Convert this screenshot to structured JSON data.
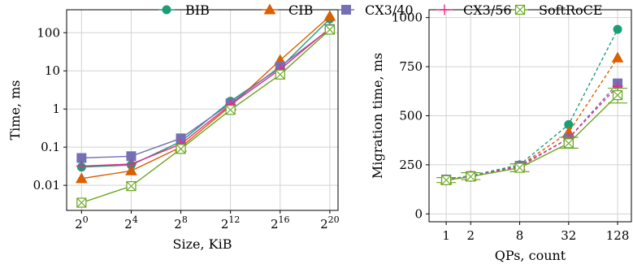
{
  "legend": [
    {
      "name": "BIB",
      "color": "#1b9e77",
      "marker": "circle"
    },
    {
      "name": "CIB",
      "color": "#d95f02",
      "marker": "triangle"
    },
    {
      "name": "CX3/40",
      "color": "#7570b3",
      "marker": "square"
    },
    {
      "name": "CX3/56",
      "color": "#e7298a",
      "marker": "plus"
    },
    {
      "name": "SoftRoCE",
      "color": "#66a61e",
      "marker": "square-x"
    }
  ],
  "chart_data": [
    {
      "type": "line",
      "xlabel": "Size, KiB",
      "ylabel": "Time, ms",
      "yscale": "log",
      "xscale": "log2",
      "x": [
        1,
        16,
        256,
        4096,
        65536,
        1048576
      ],
      "x_tick_labels": [
        {
          "base": "2",
          "exp": "0"
        },
        {
          "base": "2",
          "exp": "4"
        },
        {
          "base": "2",
          "exp": "8"
        },
        {
          "base": "2",
          "exp": "12"
        },
        {
          "base": "2",
          "exp": "16"
        },
        {
          "base": "2",
          "exp": "20"
        }
      ],
      "y_ticks": [
        0.01,
        0.1,
        1,
        10,
        100
      ],
      "y_tick_labels": [
        "0.01",
        "0.1",
        "1",
        "10",
        "100"
      ],
      "grid": true,
      "series": [
        {
          "name": "BIB",
          "values": [
            0.03,
            0.034,
            0.14,
            1.6,
            12,
            230
          ]
        },
        {
          "name": "CIB",
          "values": [
            0.015,
            0.024,
            0.1,
            1.2,
            19,
            270
          ]
        },
        {
          "name": "CX3/40",
          "values": [
            0.052,
            0.058,
            0.17,
            1.4,
            13,
            125
          ]
        },
        {
          "name": "CX3/56",
          "values": [
            0.032,
            0.036,
            0.12,
            1.3,
            11,
            130
          ]
        },
        {
          "name": "SoftRoCE",
          "values": [
            0.0035,
            0.0095,
            0.09,
            0.95,
            8,
            120
          ]
        }
      ]
    },
    {
      "type": "line",
      "xlabel": "QPs, count",
      "ylabel": "Migration time, ms",
      "xscale": "log2",
      "x": [
        1,
        2,
        8,
        32,
        128
      ],
      "x_tick_labels": [
        "1",
        "2",
        "8",
        "32",
        "128"
      ],
      "y_ticks": [
        0,
        250,
        500,
        750,
        1000
      ],
      "y_tick_labels": [
        "0",
        "250",
        "500",
        "750",
        "1000"
      ],
      "ylim": [
        -40,
        1040
      ],
      "grid": true,
      "series": [
        {
          "name": "BIB",
          "style": "dashed",
          "values": [
            175,
            195,
            250,
            455,
            940
          ]
        },
        {
          "name": "CIB",
          "style": "dashed",
          "values": [
            172,
            192,
            245,
            415,
            795
          ]
        },
        {
          "name": "CX3/40",
          "style": "dashed",
          "values": [
            175,
            193,
            245,
            385,
            665
          ]
        },
        {
          "name": "CX3/56",
          "style": "dashed",
          "values": [
            172,
            190,
            240,
            385,
            650
          ]
        },
        {
          "name": "SoftRoCE",
          "style": "solid",
          "values": [
            172,
            190,
            235,
            360,
            605
          ],
          "err_low": [
            160,
            175,
            215,
            335,
            565
          ],
          "err_high": [
            185,
            210,
            255,
            390,
            640
          ]
        }
      ]
    }
  ]
}
